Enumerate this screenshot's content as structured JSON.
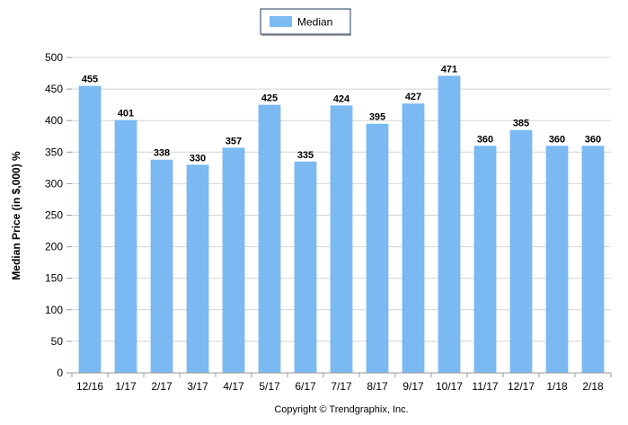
{
  "chart_data": {
    "type": "bar",
    "categories": [
      "12/16",
      "1/17",
      "2/17",
      "3/17",
      "4/17",
      "5/17",
      "6/17",
      "7/17",
      "8/17",
      "9/17",
      "10/17",
      "11/17",
      "12/17",
      "1/18",
      "2/18"
    ],
    "series": [
      {
        "name": "Median",
        "color": "#7ab9f2",
        "values": [
          455,
          401,
          338,
          330,
          357,
          425,
          335,
          424,
          395,
          427,
          471,
          360,
          385,
          360,
          360
        ]
      }
    ],
    "data_labels": [
      "455",
      "401",
      "338",
      "330",
      "357",
      "425",
      "335",
      "424",
      "395",
      "427",
      "471",
      "360",
      "385",
      "360",
      "360"
    ],
    "ylabel": "Median Price (in $,000) %",
    "xlabel": "",
    "ylim": [
      0,
      500
    ],
    "yticks": [
      0,
      50,
      100,
      150,
      200,
      250,
      300,
      350,
      400,
      450,
      500
    ],
    "grid": true,
    "legend_position": "top-center"
  },
  "copyright": "Copyright © Trendgraphix, Inc.",
  "colors": {
    "bar": "#7ab9f2",
    "grid": "#d4d4d4",
    "axis": "#9a9a9a"
  }
}
